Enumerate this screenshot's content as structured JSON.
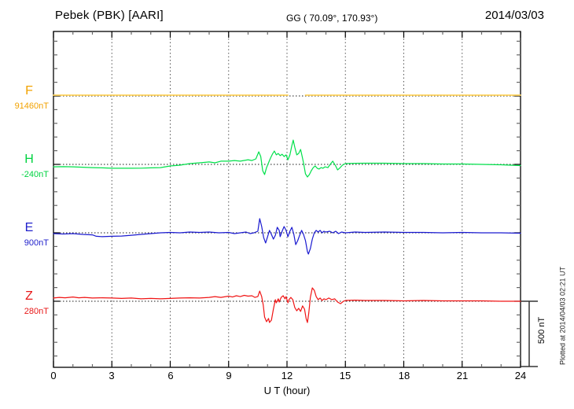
{
  "header": {
    "station_title": "Pebek (PBK)  [AARI]",
    "geo_coords": "GG ( 70.09°, 170.93°)",
    "date": "2014/03/03"
  },
  "x_axis": {
    "tick_labels": [
      "0",
      "3",
      "6",
      "9",
      "12",
      "15",
      "18",
      "21",
      "24"
    ],
    "axis_label": "U T (hour)"
  },
  "scale_bar": {
    "label": "500 nT",
    "span_nT": 500
  },
  "plot_note": "Plotted at 2014/04/03 02:21 UT",
  "chart_data": {
    "type": "line",
    "title": "Pebek (PBK) [AARI] magnetogram",
    "xlabel": "U T (hour)",
    "x_range": [
      0,
      24
    ],
    "x_tick_step_hours": 1,
    "x_major_tick_step_hours": 3,
    "grid": "vertical dotted every 3 hours, dotted baseline per channel",
    "legend_position": "left margin channel labels",
    "y_scale_note": "vertical scale bar = 500 nT, minor division = 100 nT",
    "series": [
      {
        "name": "F",
        "baseline_label": "91460nT",
        "baseline_nT": 91460,
        "label_color": "#F2A200",
        "trace_color": "#FFD35C",
        "points": [
          [
            0,
            6
          ],
          [
            3,
            6
          ],
          [
            6,
            6
          ],
          [
            9,
            6
          ],
          [
            12.05,
            6
          ],
          [
            12.5,
            null
          ],
          [
            12.95,
            6
          ],
          [
            15,
            6
          ],
          [
            18,
            6
          ],
          [
            21,
            6
          ],
          [
            24,
            6
          ]
        ]
      },
      {
        "name": "H",
        "baseline_label": "-240nT",
        "baseline_nT": -240,
        "label_color": "#00D341",
        "trace_color": "#00E04A",
        "points": [
          [
            0,
            -18
          ],
          [
            0.5,
            -17
          ],
          [
            1,
            -18
          ],
          [
            1.5,
            -21
          ],
          [
            2,
            -24
          ],
          [
            2.5,
            -26
          ],
          [
            3,
            -29
          ],
          [
            3.5,
            -29
          ],
          [
            4,
            -29
          ],
          [
            4.5,
            -28
          ],
          [
            5,
            -26
          ],
          [
            5.5,
            -24
          ],
          [
            6,
            -12
          ],
          [
            6.5,
            -6
          ],
          [
            7,
            6
          ],
          [
            7.5,
            12
          ],
          [
            8,
            18
          ],
          [
            8.3,
            12
          ],
          [
            8.6,
            24
          ],
          [
            9,
            24
          ],
          [
            9.3,
            29
          ],
          [
            9.6,
            24
          ],
          [
            10,
            35
          ],
          [
            10.2,
            29
          ],
          [
            10.4,
            41
          ],
          [
            10.55,
            94
          ],
          [
            10.65,
            59
          ],
          [
            10.75,
            -47
          ],
          [
            10.85,
            -76
          ],
          [
            10.95,
            -24
          ],
          [
            11.05,
            12
          ],
          [
            11.15,
            47
          ],
          [
            11.25,
            76
          ],
          [
            11.35,
            100
          ],
          [
            11.45,
            71
          ],
          [
            11.55,
            82
          ],
          [
            11.65,
            65
          ],
          [
            11.75,
            76
          ],
          [
            11.85,
            59
          ],
          [
            11.95,
            71
          ],
          [
            12.05,
            35
          ],
          [
            12.15,
            71
          ],
          [
            12.25,
            141
          ],
          [
            12.32,
            182
          ],
          [
            12.4,
            129
          ],
          [
            12.5,
            71
          ],
          [
            12.6,
            82
          ],
          [
            12.7,
            112
          ],
          [
            12.78,
            59
          ],
          [
            12.85,
            12
          ],
          [
            12.95,
            -71
          ],
          [
            13.05,
            -94
          ],
          [
            13.15,
            -76
          ],
          [
            13.25,
            -47
          ],
          [
            13.35,
            -24
          ],
          [
            13.45,
            -12
          ],
          [
            13.55,
            -29
          ],
          [
            13.65,
            -35
          ],
          [
            13.75,
            -24
          ],
          [
            13.85,
            -29
          ],
          [
            13.95,
            -18
          ],
          [
            14.1,
            -24
          ],
          [
            14.25,
            6
          ],
          [
            14.35,
            24
          ],
          [
            14.5,
            -12
          ],
          [
            14.6,
            -41
          ],
          [
            14.7,
            -29
          ],
          [
            14.85,
            -6
          ],
          [
            15,
            6
          ],
          [
            15.5,
            8
          ],
          [
            16,
            9
          ],
          [
            17,
            9
          ],
          [
            18,
            6
          ],
          [
            19,
            6
          ],
          [
            20,
            3
          ],
          [
            21,
            3
          ],
          [
            22,
            0
          ],
          [
            23,
            -3
          ],
          [
            23.5,
            -6
          ],
          [
            24,
            -9
          ]
        ]
      },
      {
        "name": "E",
        "baseline_label": "900nT",
        "baseline_nT": 900,
        "label_color": "#2222CC",
        "trace_color": "#1A1AD0",
        "points": [
          [
            0,
            -6
          ],
          [
            0.5,
            -9
          ],
          [
            1,
            -6
          ],
          [
            1.5,
            -12
          ],
          [
            2,
            -15
          ],
          [
            2.2,
            -26
          ],
          [
            2.5,
            -29
          ],
          [
            3,
            -26
          ],
          [
            3.5,
            -24
          ],
          [
            4,
            -18
          ],
          [
            4.5,
            -12
          ],
          [
            5,
            -6
          ],
          [
            5.5,
            0
          ],
          [
            6,
            3
          ],
          [
            6.5,
            0
          ],
          [
            7,
            6
          ],
          [
            7.5,
            3
          ],
          [
            8,
            6
          ],
          [
            8.5,
            0
          ],
          [
            9,
            3
          ],
          [
            9.3,
            -6
          ],
          [
            9.6,
            0
          ],
          [
            9.9,
            6
          ],
          [
            10.1,
            -6
          ],
          [
            10.3,
            0
          ],
          [
            10.5,
            12
          ],
          [
            10.6,
            106
          ],
          [
            10.7,
            47
          ],
          [
            10.8,
            -35
          ],
          [
            10.9,
            -76
          ],
          [
            11,
            -29
          ],
          [
            11.1,
            18
          ],
          [
            11.2,
            -12
          ],
          [
            11.3,
            -47
          ],
          [
            11.4,
            -18
          ],
          [
            11.5,
            41
          ],
          [
            11.6,
            18
          ],
          [
            11.65,
            -29
          ],
          [
            11.75,
            12
          ],
          [
            11.85,
            47
          ],
          [
            11.95,
            18
          ],
          [
            12.05,
            -29
          ],
          [
            12.15,
            12
          ],
          [
            12.25,
            41
          ],
          [
            12.35,
            -12
          ],
          [
            12.45,
            -88
          ],
          [
            12.55,
            -59
          ],
          [
            12.65,
            -18
          ],
          [
            12.75,
            18
          ],
          [
            12.85,
            -12
          ],
          [
            12.95,
            -59
          ],
          [
            13.05,
            -141
          ],
          [
            13.1,
            -159
          ],
          [
            13.2,
            -118
          ],
          [
            13.3,
            -47
          ],
          [
            13.4,
            0
          ],
          [
            13.5,
            18
          ],
          [
            13.6,
            6
          ],
          [
            13.7,
            18
          ],
          [
            13.8,
            0
          ],
          [
            13.9,
            12
          ],
          [
            14,
            6
          ],
          [
            14.2,
            12
          ],
          [
            14.35,
            0
          ],
          [
            14.5,
            12
          ],
          [
            14.65,
            -6
          ],
          [
            14.8,
            6
          ],
          [
            15,
            0
          ],
          [
            15.5,
            6
          ],
          [
            16,
            3
          ],
          [
            17,
            6
          ],
          [
            18,
            3
          ],
          [
            19,
            3
          ],
          [
            20,
            0
          ],
          [
            21,
            3
          ],
          [
            22,
            0
          ],
          [
            23,
            0
          ],
          [
            24,
            -3
          ]
        ]
      },
      {
        "name": "Z",
        "baseline_label": "280nT",
        "baseline_nT": 280,
        "label_color": "#E81818",
        "trace_color": "#F01414",
        "points": [
          [
            0,
            24
          ],
          [
            0.3,
            29
          ],
          [
            0.6,
            26
          ],
          [
            1,
            32
          ],
          [
            1.3,
            26
          ],
          [
            1.6,
            29
          ],
          [
            2,
            24
          ],
          [
            2.5,
            26
          ],
          [
            3,
            24
          ],
          [
            3.5,
            21
          ],
          [
            4,
            24
          ],
          [
            4.5,
            18
          ],
          [
            5,
            21
          ],
          [
            5.5,
            18
          ],
          [
            6,
            21
          ],
          [
            6.5,
            24
          ],
          [
            7,
            26
          ],
          [
            7.5,
            24
          ],
          [
            8,
            29
          ],
          [
            8.3,
            35
          ],
          [
            8.6,
            29
          ],
          [
            9,
            38
          ],
          [
            9.2,
            32
          ],
          [
            9.4,
            41
          ],
          [
            9.6,
            35
          ],
          [
            9.8,
            44
          ],
          [
            10,
            38
          ],
          [
            10.2,
            41
          ],
          [
            10.35,
            29
          ],
          [
            10.5,
            35
          ],
          [
            10.6,
            76
          ],
          [
            10.7,
            35
          ],
          [
            10.78,
            -29
          ],
          [
            10.85,
            -118
          ],
          [
            10.95,
            -153
          ],
          [
            11.05,
            -129
          ],
          [
            11.1,
            -159
          ],
          [
            11.2,
            -141
          ],
          [
            11.3,
            -59
          ],
          [
            11.4,
            12
          ],
          [
            11.45,
            -12
          ],
          [
            11.55,
            18
          ],
          [
            11.6,
            -6
          ],
          [
            11.7,
            29
          ],
          [
            11.8,
            41
          ],
          [
            11.9,
            18
          ],
          [
            11.95,
            35
          ],
          [
            12.05,
            -12
          ],
          [
            12.1,
            12
          ],
          [
            12.2,
            29
          ],
          [
            12.3,
            12
          ],
          [
            12.4,
            -47
          ],
          [
            12.5,
            -71
          ],
          [
            12.6,
            -53
          ],
          [
            12.7,
            -76
          ],
          [
            12.8,
            -35
          ],
          [
            12.9,
            -59
          ],
          [
            12.98,
            -129
          ],
          [
            13.05,
            -159
          ],
          [
            13.12,
            -88
          ],
          [
            13.2,
            29
          ],
          [
            13.3,
            100
          ],
          [
            13.4,
            82
          ],
          [
            13.5,
            35
          ],
          [
            13.6,
            12
          ],
          [
            13.7,
            24
          ],
          [
            13.8,
            6
          ],
          [
            13.9,
            18
          ],
          [
            14,
            12
          ],
          [
            14.15,
            24
          ],
          [
            14.3,
            12
          ],
          [
            14.45,
            18
          ],
          [
            14.6,
            -6
          ],
          [
            14.75,
            -18
          ],
          [
            14.9,
            0
          ],
          [
            15,
            6
          ],
          [
            15.5,
            8
          ],
          [
            16,
            6
          ],
          [
            17,
            6
          ],
          [
            18,
            3
          ],
          [
            19,
            6
          ],
          [
            20,
            3
          ],
          [
            21,
            3
          ],
          [
            22,
            3
          ],
          [
            23,
            0
          ],
          [
            24,
            0
          ]
        ]
      }
    ]
  }
}
